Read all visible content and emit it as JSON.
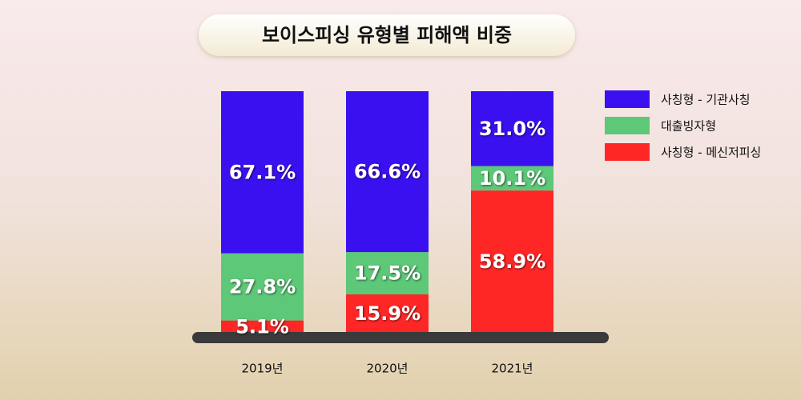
{
  "chart_data": {
    "type": "stacked-bar",
    "title": "보이스피싱 유형별 피해액 비중",
    "categories": [
      "2019년",
      "2020년",
      "2021년"
    ],
    "series": [
      {
        "name": "사칭형 - 메신저피싱",
        "color": "#ff2626",
        "values": [
          5.1,
          15.9,
          58.9
        ],
        "value_labels": [
          "5.1%",
          "15.9%",
          "58.9%"
        ]
      },
      {
        "name": "대출빙자형",
        "color": "#5cc878",
        "values": [
          27.8,
          17.5,
          10.1
        ],
        "value_labels": [
          "27.8%",
          "17.5%",
          "10.1%"
        ]
      },
      {
        "name": "사칭형 - 기관사칭",
        "color": "#3a10f0",
        "values": [
          67.1,
          66.6,
          31.0
        ],
        "value_labels": [
          "67.1%",
          "66.6%",
          "31.0%"
        ]
      }
    ]
  }
}
